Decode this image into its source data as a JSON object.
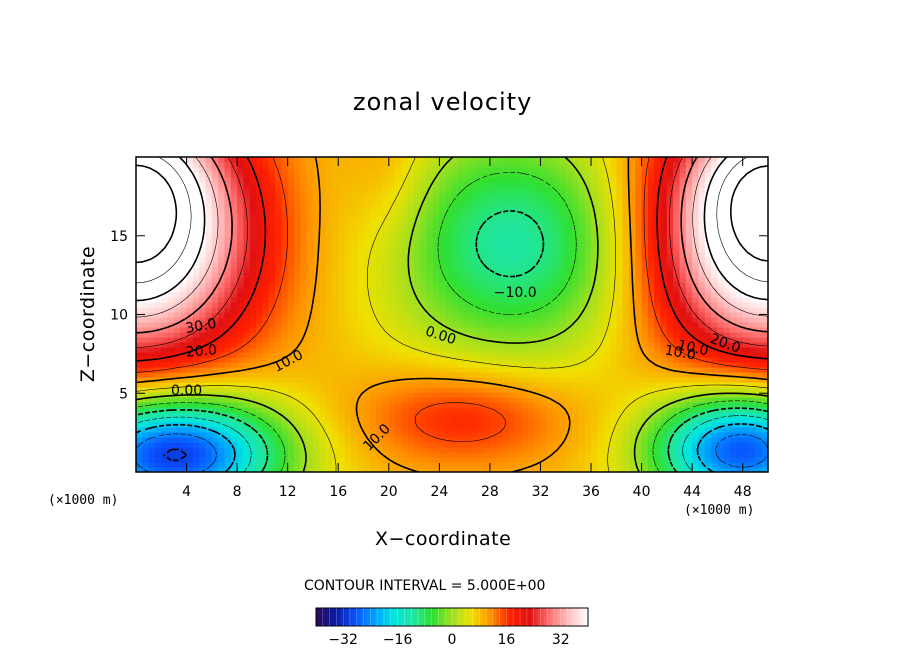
{
  "chart_data": {
    "type": "heatmap",
    "title": "zonal velocity",
    "xlabel": "X−coordinate",
    "ylabel": "Z−coordinate",
    "x_unit_left": "(×1000 m)",
    "x_unit_right": "(×1000 m)",
    "y_unit": "(×1000 m)",
    "xlim": [
      0,
      50
    ],
    "ylim": [
      0,
      20
    ],
    "x_ticks": [
      4,
      8,
      12,
      16,
      20,
      24,
      28,
      32,
      36,
      40,
      44,
      48
    ],
    "y_ticks": [
      5,
      10,
      15
    ],
    "contour_interval_text": "CONTOUR INTERVAL = 5.000E+00",
    "contour_labels": [
      "30.0",
      "20.0",
      "10.0",
      "0.00",
      "0.00",
      "10.0",
      "10.0",
      "−10.0",
      "10.0",
      "20.0"
    ],
    "colorbar": {
      "range": [
        -40,
        40
      ],
      "ticks": [
        -32,
        -16,
        0,
        16,
        32
      ],
      "tick_labels": [
        "−32",
        "−16",
        "0",
        "16",
        "32"
      ]
    },
    "features": [
      {
        "x": 0,
        "z": 15,
        "value": 45
      },
      {
        "x": 50,
        "z": 15,
        "value": 45
      },
      {
        "x": 3,
        "z": 1.5,
        "value": -30
      },
      {
        "x": 48,
        "z": 2,
        "value": -28
      },
      {
        "x": 30,
        "z": 15,
        "value": -12
      },
      {
        "x": 26,
        "z": 3.5,
        "value": 16
      }
    ],
    "colors": {
      "colormap": [
        "#2a0a5a",
        "#0a1aa0",
        "#0a50ff",
        "#00a0ff",
        "#00e6e0",
        "#20e6a0",
        "#30e030",
        "#a0e020",
        "#f0e000",
        "#ff9000",
        "#ff2000",
        "#e01010",
        "#ff7070",
        "#ffc0c0",
        "#ffffff"
      ],
      "axes": "#000000"
    }
  }
}
